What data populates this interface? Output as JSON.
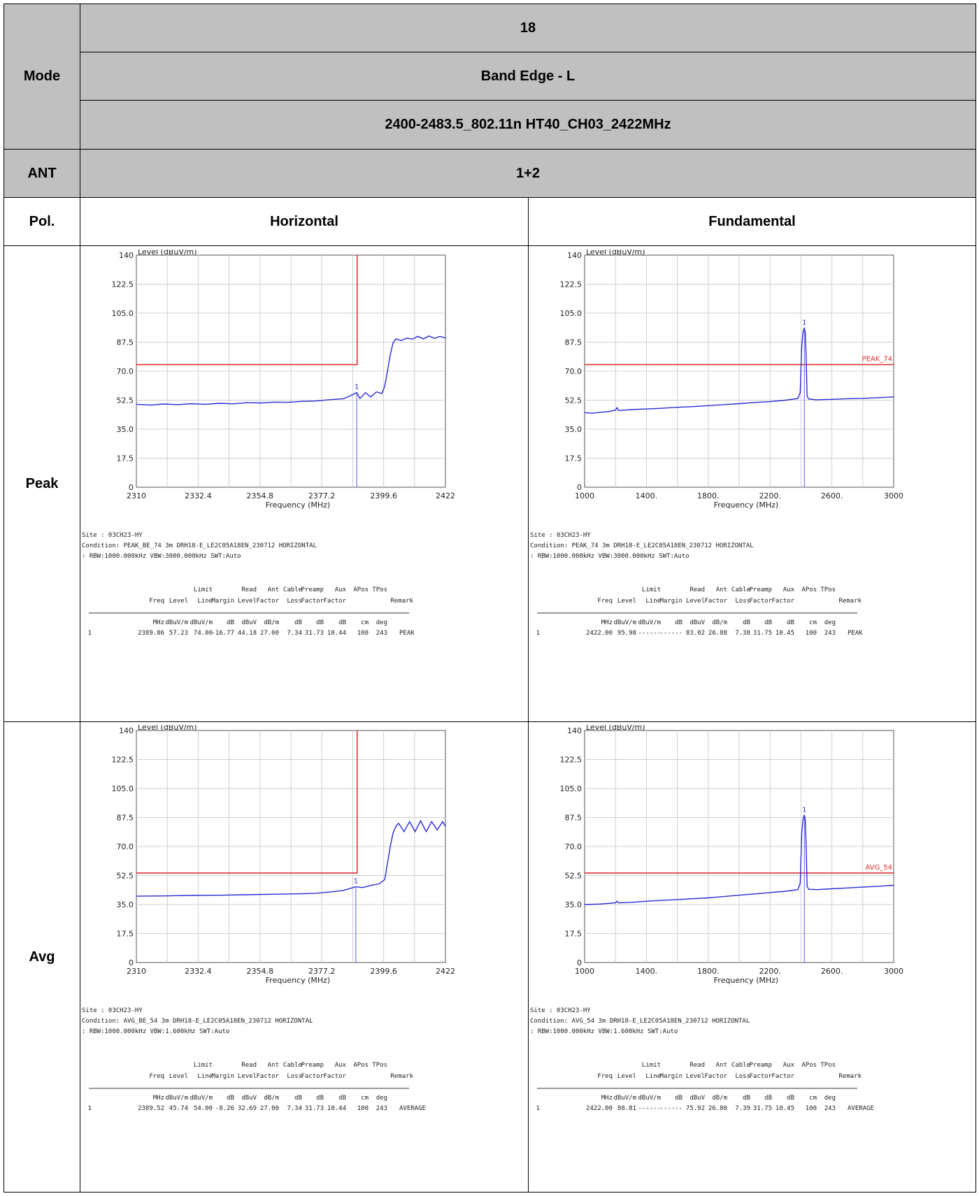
{
  "header": {
    "mode_label": "Mode",
    "mode_value": "18",
    "band_edge": "Band Edge - L",
    "test_name": "2400-2483.5_802.11n HT40_CH03_2422MHz",
    "ant_label": "ANT",
    "ant_value": "1+2",
    "pol_label": "Pol.",
    "col1_label": "Horizontal",
    "col2_label": "Fundamental"
  },
  "rows": {
    "peak_label": "Peak",
    "avg_label": "Avg"
  },
  "table_headers": {
    "line1": [
      "",
      "",
      "Limit",
      "",
      "Read",
      "Ant",
      "Cable",
      "Preamp",
      "Aux",
      "APos",
      "TPos",
      ""
    ],
    "line2": [
      "Freq",
      "Level",
      "Line",
      "Margin",
      "Level",
      "Factor",
      "Loss",
      "Factor",
      "Factor",
      "",
      "",
      "Remark"
    ],
    "units": [
      "MHz",
      "dBuV/m",
      "dBuV/m",
      "dB",
      "dBuV",
      "dB/m",
      "dB",
      "dB",
      "dB",
      "cm",
      "deg",
      ""
    ]
  },
  "panels": [
    {
      "id": "peak-horizontal",
      "chart_data": {
        "type": "line",
        "ylabel": "Level (dBuV/m)",
        "xlabel": "Frequency (MHz)",
        "xlim": [
          2310,
          2422
        ],
        "ylim": [
          0,
          140
        ],
        "x_ticks": [
          "2310",
          "2332.4",
          "2354.8",
          "2377.2",
          "2399.6",
          "2422"
        ],
        "y_ticks": [
          "0",
          "17.5",
          "35.0",
          "52.5",
          "70.0",
          "87.5",
          "105.0",
          "122.5",
          "140"
        ],
        "limit": {
          "type": "step",
          "level": 74.0,
          "edge_x": 2390,
          "label": ""
        },
        "marker": {
          "x": 2389.86,
          "y": 57.23,
          "label": "1"
        },
        "series": [
          {
            "points": [
              [
                2310,
                50
              ],
              [
                2315,
                49.6
              ],
              [
                2320,
                50.2
              ],
              [
                2325,
                49.8
              ],
              [
                2330,
                50.4
              ],
              [
                2335,
                50
              ],
              [
                2340,
                50.6
              ],
              [
                2345,
                50.3
              ],
              [
                2350,
                51
              ],
              [
                2355,
                50.8
              ],
              [
                2360,
                51.3
              ],
              [
                2365,
                51.2
              ],
              [
                2370,
                51.8
              ],
              [
                2375,
                52
              ],
              [
                2380,
                52.8
              ],
              [
                2385,
                53.4
              ],
              [
                2388,
                55.5
              ],
              [
                2389.86,
                57.2
              ],
              [
                2391,
                53.5
              ],
              [
                2393,
                57
              ],
              [
                2395,
                54.5
              ],
              [
                2397,
                57.5
              ],
              [
                2399,
                56.5
              ],
              [
                2400,
                61
              ],
              [
                2401,
                70
              ],
              [
                2402,
                80
              ],
              [
                2403,
                87
              ],
              [
                2404,
                89.5
              ],
              [
                2406,
                88.5
              ],
              [
                2408,
                90
              ],
              [
                2410,
                89.3
              ],
              [
                2412,
                91
              ],
              [
                2414,
                89.5
              ],
              [
                2416,
                91.2
              ],
              [
                2418,
                89.8
              ],
              [
                2420,
                91
              ],
              [
                2422,
                90
              ]
            ]
          }
        ]
      },
      "info": {
        "site": "Site    : 03CH23-HY",
        "condition": "Condition: PEAK_BE_74 3m DRH18-E_LE2C05A18EN_230712 HORIZONTAL",
        "rbw": "          : RBW:1000.000kHz VBW:3000.000kHz SWT:Auto",
        "row": [
          "1",
          "2389.86",
          "57.23",
          "74.00",
          "-16.77",
          "44.18",
          "27.00",
          "7.34",
          "31.73",
          "10.44",
          "100",
          "243",
          "PEAK"
        ]
      }
    },
    {
      "id": "peak-fundamental",
      "chart_data": {
        "type": "line",
        "ylabel": "Level (dBuV/m)",
        "xlabel": "Frequency (MHz)",
        "xlim": [
          1000,
          3000
        ],
        "ylim": [
          0,
          140
        ],
        "x_ticks": [
          "1000",
          "1400.",
          "1800.",
          "2200.",
          "2600.",
          "3000"
        ],
        "y_ticks": [
          "0",
          "17.5",
          "35.0",
          "52.5",
          "70.0",
          "87.5",
          "105.0",
          "122.5",
          "140"
        ],
        "limit": {
          "type": "flat",
          "level": 74.0,
          "label": "PEAK_74"
        },
        "marker": {
          "x": 2422.0,
          "y": 95.98,
          "label": "1"
        },
        "series": [
          {
            "points": [
              [
                1000,
                45
              ],
              [
                1050,
                44.6
              ],
              [
                1100,
                45.2
              ],
              [
                1150,
                45.6
              ],
              [
                1200,
                46.5
              ],
              [
                1210,
                48
              ],
              [
                1220,
                46.2
              ],
              [
                1300,
                46.8
              ],
              [
                1400,
                47.2
              ],
              [
                1500,
                47.6
              ],
              [
                1600,
                48.2
              ],
              [
                1700,
                48.6
              ],
              [
                1800,
                49.2
              ],
              [
                1900,
                49.8
              ],
              [
                2000,
                50.4
              ],
              [
                2100,
                51.1
              ],
              [
                2200,
                51.6
              ],
              [
                2300,
                52.5
              ],
              [
                2380,
                53.5
              ],
              [
                2395,
                57
              ],
              [
                2405,
                85
              ],
              [
                2412,
                93
              ],
              [
                2418,
                95.5
              ],
              [
                2422,
                96
              ],
              [
                2428,
                93
              ],
              [
                2433,
                80
              ],
              [
                2440,
                55
              ],
              [
                2450,
                53.2
              ],
              [
                2500,
                52.7
              ],
              [
                2600,
                53
              ],
              [
                2700,
                53.4
              ],
              [
                2800,
                53.6
              ],
              [
                2900,
                54
              ],
              [
                3000,
                54.5
              ]
            ]
          }
        ]
      },
      "info": {
        "site": "Site    : 03CH23-HY",
        "condition": "Condition: PEAK_74 3m DRH18-E_LE2C05A18EN_230712 HORIZONTAL",
        "rbw": "          : RBW:1000.000kHz VBW:3000.000kHz SWT:Auto",
        "row": [
          "1",
          "2422.00",
          "95.98",
          "------",
          "------",
          "83.02",
          "26.88",
          "7.38",
          "31.75",
          "10.45",
          "100",
          "243",
          "PEAK"
        ]
      }
    },
    {
      "id": "avg-horizontal",
      "chart_data": {
        "type": "line",
        "ylabel": "Level (dBuV/m)",
        "xlabel": "Frequency (MHz)",
        "xlim": [
          2310,
          2422
        ],
        "ylim": [
          0,
          140
        ],
        "x_ticks": [
          "2310",
          "2332.4",
          "2354.8",
          "2377.2",
          "2399.6",
          "2422"
        ],
        "y_ticks": [
          "0",
          "17.5",
          "35.0",
          "52.5",
          "70.0",
          "87.5",
          "105.0",
          "122.5",
          "140"
        ],
        "limit": {
          "type": "step",
          "level": 54.0,
          "edge_x": 2390,
          "label": ""
        },
        "marker": {
          "x": 2389.52,
          "y": 45.74,
          "label": "1"
        },
        "series": [
          {
            "points": [
              [
                2310,
                40
              ],
              [
                2320,
                40.2
              ],
              [
                2330,
                40.5
              ],
              [
                2340,
                40.6
              ],
              [
                2350,
                40.9
              ],
              [
                2360,
                41.2
              ],
              [
                2370,
                41.5
              ],
              [
                2375,
                41.8
              ],
              [
                2380,
                42.5
              ],
              [
                2385,
                43.5
              ],
              [
                2389.52,
                45.7
              ],
              [
                2392,
                45.2
              ],
              [
                2395,
                46.5
              ],
              [
                2398,
                47.5
              ],
              [
                2400,
                50
              ],
              [
                2401,
                60
              ],
              [
                2402,
                70
              ],
              [
                2403,
                78
              ],
              [
                2404,
                82
              ],
              [
                2405,
                84
              ],
              [
                2407,
                79
              ],
              [
                2409,
                85
              ],
              [
                2411,
                79
              ],
              [
                2413,
                85.5
              ],
              [
                2415,
                79
              ],
              [
                2417,
                85
              ],
              [
                2419,
                80
              ],
              [
                2421,
                85
              ],
              [
                2422,
                82
              ]
            ]
          }
        ]
      },
      "info": {
        "site": "Site    : 03CH23-HY",
        "condition": "Condition: AVG_BE_54 3m DRH18-E_LE2C05A18EN_230712 HORIZONTAL",
        "rbw": "          : RBW:1000.000kHz VBW:1.600kHz SWT:Auto",
        "row": [
          "1",
          "2389.52",
          "45.74",
          "54.00",
          "-8.26",
          "32.69",
          "27.00",
          "7.34",
          "31.73",
          "10.44",
          "100",
          "243",
          "AVERAGE"
        ]
      }
    },
    {
      "id": "avg-fundamental",
      "chart_data": {
        "type": "line",
        "ylabel": "Level (dBuV/m)",
        "xlabel": "Frequency (MHz)",
        "xlim": [
          1000,
          3000
        ],
        "ylim": [
          0,
          140
        ],
        "x_ticks": [
          "1000",
          "1400.",
          "1800.",
          "2200.",
          "2600.",
          "3000"
        ],
        "y_ticks": [
          "0",
          "17.5",
          "35.0",
          "52.5",
          "70.0",
          "87.5",
          "105.0",
          "122.5",
          "140"
        ],
        "limit": {
          "type": "flat",
          "level": 54.0,
          "label": "AVG_54"
        },
        "marker": {
          "x": 2422.0,
          "y": 88.81,
          "label": "1"
        },
        "series": [
          {
            "points": [
              [
                1000,
                35
              ],
              [
                1100,
                35.3
              ],
              [
                1200,
                36
              ],
              [
                1210,
                37
              ],
              [
                1220,
                36
              ],
              [
                1300,
                36.3
              ],
              [
                1400,
                37
              ],
              [
                1500,
                37.5
              ],
              [
                1600,
                38
              ],
              [
                1700,
                38.5
              ],
              [
                1800,
                39
              ],
              [
                1900,
                39.8
              ],
              [
                2000,
                40.6
              ],
              [
                2100,
                41.4
              ],
              [
                2200,
                42.2
              ],
              [
                2300,
                43
              ],
              [
                2380,
                44
              ],
              [
                2395,
                48
              ],
              [
                2405,
                78
              ],
              [
                2413,
                86
              ],
              [
                2418,
                88.5
              ],
              [
                2422,
                88.8
              ],
              [
                2428,
                86
              ],
              [
                2433,
                72
              ],
              [
                2440,
                46
              ],
              [
                2450,
                44.2
              ],
              [
                2500,
                44
              ],
              [
                2600,
                44.5
              ],
              [
                2700,
                45
              ],
              [
                2800,
                45.5
              ],
              [
                2900,
                46
              ],
              [
                3000,
                46.6
              ]
            ]
          }
        ]
      },
      "info": {
        "site": "Site    : 03CH23-HY",
        "condition": "Condition: AVG_54 3m DRH18-E_LE2C05A18EN_230712 HORIZONTAL",
        "rbw": "          : RBW:1000.000kHz VBW:1.600kHz SWT:Auto",
        "row": [
          "1",
          "2422.00",
          "88.81",
          "------",
          "------",
          "75.92",
          "26.80",
          "7.39",
          "31.75",
          "10.45",
          "100",
          "243",
          "AVERAGE"
        ]
      }
    }
  ]
}
